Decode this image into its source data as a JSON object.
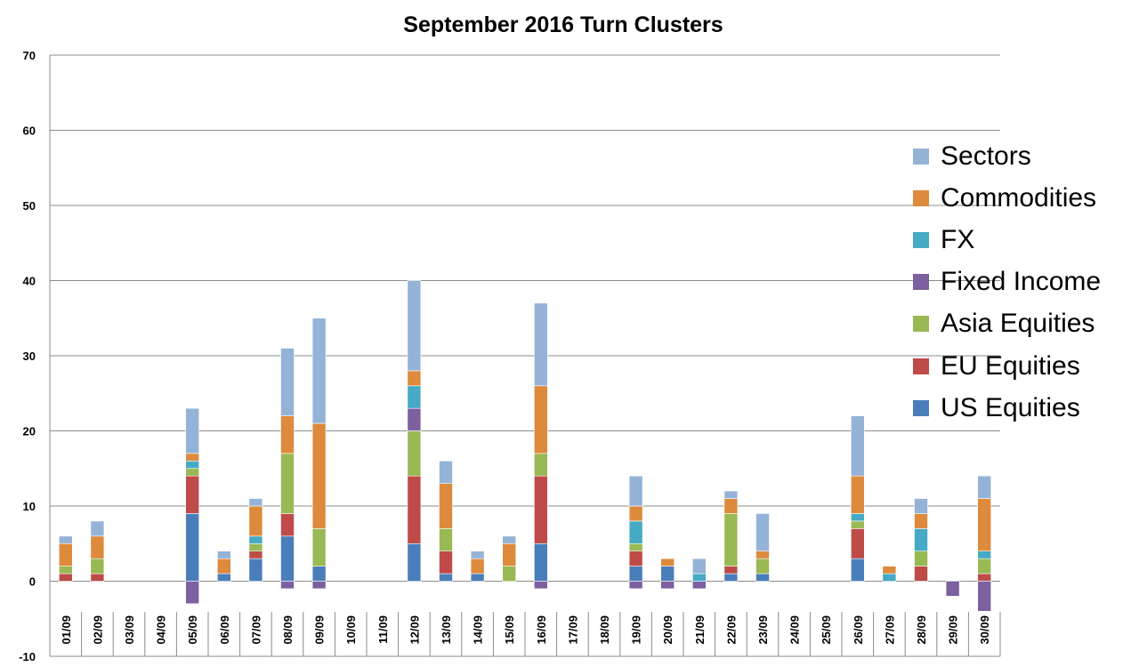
{
  "chart_data": {
    "type": "bar",
    "stacked": true,
    "title": "September 2016 Turn Clusters",
    "ylim": [
      -10,
      70
    ],
    "yticks": [
      -10,
      0,
      10,
      20,
      30,
      40,
      50,
      60,
      70
    ],
    "grid": true,
    "legend_position": "right",
    "categories": [
      "01/09",
      "02/09",
      "03/09",
      "04/09",
      "05/09",
      "06/09",
      "07/09",
      "08/09",
      "09/09",
      "10/09",
      "11/09",
      "12/09",
      "13/09",
      "14/09",
      "15/09",
      "16/09",
      "17/09",
      "18/09",
      "19/09",
      "20/09",
      "21/09",
      "22/09",
      "23/09",
      "24/09",
      "25/09",
      "26/09",
      "27/09",
      "28/09",
      "29/09",
      "30/09"
    ],
    "series": [
      {
        "name": "US Equities",
        "color": "#4a7ebb",
        "values": [
          0,
          0,
          0,
          0,
          9,
          1,
          3,
          6,
          2,
          0,
          0,
          5,
          1,
          1,
          0,
          5,
          0,
          0,
          2,
          2,
          0,
          1,
          1,
          0,
          0,
          3,
          0,
          0,
          0,
          0
        ]
      },
      {
        "name": "EU Equities",
        "color": "#be4b48",
        "values": [
          1,
          1,
          0,
          0,
          5,
          0,
          1,
          3,
          0,
          0,
          0,
          9,
          3,
          0,
          0,
          9,
          0,
          0,
          2,
          0,
          0,
          1,
          0,
          0,
          0,
          4,
          0,
          2,
          0,
          1
        ]
      },
      {
        "name": "Asia Equities",
        "color": "#98b954",
        "values": [
          1,
          2,
          0,
          0,
          1,
          0,
          1,
          8,
          5,
          0,
          0,
          6,
          3,
          0,
          2,
          3,
          0,
          0,
          1,
          0,
          0,
          7,
          2,
          0,
          0,
          1,
          0,
          2,
          0,
          2
        ]
      },
      {
        "name": "Fixed Income",
        "color": "#7d60a0",
        "values": [
          0,
          0,
          0,
          0,
          -3,
          0,
          0,
          -1,
          -1,
          0,
          0,
          3,
          0,
          0,
          0,
          -1,
          0,
          0,
          -1,
          -1,
          -1,
          0,
          0,
          0,
          0,
          0,
          0,
          0,
          -2,
          -4
        ]
      },
      {
        "name": "FX",
        "color": "#46aac5",
        "values": [
          0,
          0,
          0,
          0,
          1,
          0,
          1,
          0,
          0,
          0,
          0,
          3,
          0,
          0,
          0,
          0,
          0,
          0,
          3,
          0,
          1,
          0,
          0,
          0,
          0,
          1,
          1,
          3,
          0,
          1
        ]
      },
      {
        "name": "Commodities",
        "color": "#dd8a3d",
        "values": [
          3,
          3,
          0,
          0,
          1,
          2,
          4,
          5,
          14,
          0,
          0,
          2,
          6,
          2,
          3,
          9,
          0,
          0,
          2,
          1,
          0,
          2,
          1,
          0,
          0,
          5,
          1,
          2,
          0,
          7
        ]
      },
      {
        "name": "Sectors",
        "color": "#95b3d7",
        "values": [
          1,
          2,
          0,
          0,
          6,
          1,
          1,
          9,
          14,
          0,
          0,
          12,
          3,
          1,
          1,
          11,
          0,
          0,
          4,
          0,
          2,
          1,
          5,
          0,
          0,
          8,
          0,
          2,
          0,
          3
        ]
      }
    ]
  }
}
